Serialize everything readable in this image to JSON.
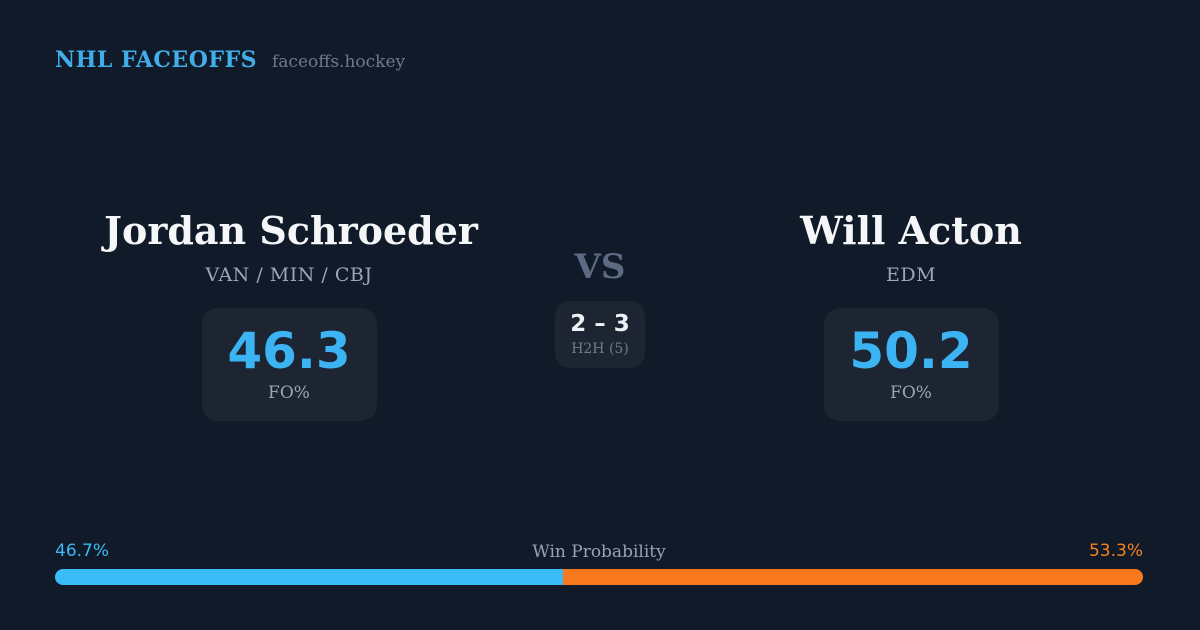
{
  "header": {
    "brand": "NHL FACEOFFS",
    "site": "faceoffs.hockey"
  },
  "matchup": {
    "left": {
      "name": "Jordan Schroeder",
      "teams": "VAN / MIN / CBJ",
      "stat_value": "46.3",
      "stat_label": "FO%"
    },
    "center": {
      "vs": "VS",
      "h2h_score": "2 – 3",
      "h2h_label": "H2H (5)"
    },
    "right": {
      "name": "Will Acton",
      "teams": "EDM",
      "stat_value": "50.2",
      "stat_label": "FO%"
    }
  },
  "win_probability": {
    "label": "Win Probability",
    "left_pct": "46.7%",
    "right_pct": "53.3%",
    "left_value": 46.7,
    "right_value": 53.3
  },
  "colors": {
    "background": "#111a28",
    "card_background": "#1d2533",
    "accent_blue": "#3cb4f4",
    "accent_orange": "#f8791d",
    "brand_blue": "#41ade9",
    "text_primary": "#f4f6f8",
    "text_muted": "#9ba6b6"
  },
  "chart_data": {
    "type": "bar",
    "title": "Win Probability",
    "categories": [
      "Jordan Schroeder",
      "Will Acton"
    ],
    "values": [
      46.7,
      53.3
    ],
    "xlabel": "",
    "ylabel": "Win Probability (%)",
    "ylim": [
      0,
      100
    ],
    "legend_position": "none",
    "orientation": "horizontal-stacked"
  }
}
